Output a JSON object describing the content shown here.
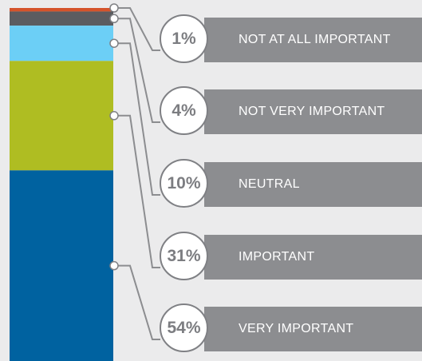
{
  "chart_data": {
    "type": "bar",
    "stacked": true,
    "unit": "%",
    "series": [
      {
        "name": "NOT AT ALL IMPORTANT",
        "value": 1,
        "label": "1%",
        "color": "#d4532b"
      },
      {
        "name": "NOT VERY IMPORTANT",
        "value": 4,
        "label": "4%",
        "color": "#5b5c60"
      },
      {
        "name": "NEUTRAL",
        "value": 10,
        "label": "10%",
        "color": "#6ccff6"
      },
      {
        "name": "IMPORTANT",
        "value": 31,
        "label": "31%",
        "color": "#afbd22"
      },
      {
        "name": "VERY IMPORTANT",
        "value": 54,
        "label": "54%",
        "color": "#0062a0"
      }
    ]
  }
}
